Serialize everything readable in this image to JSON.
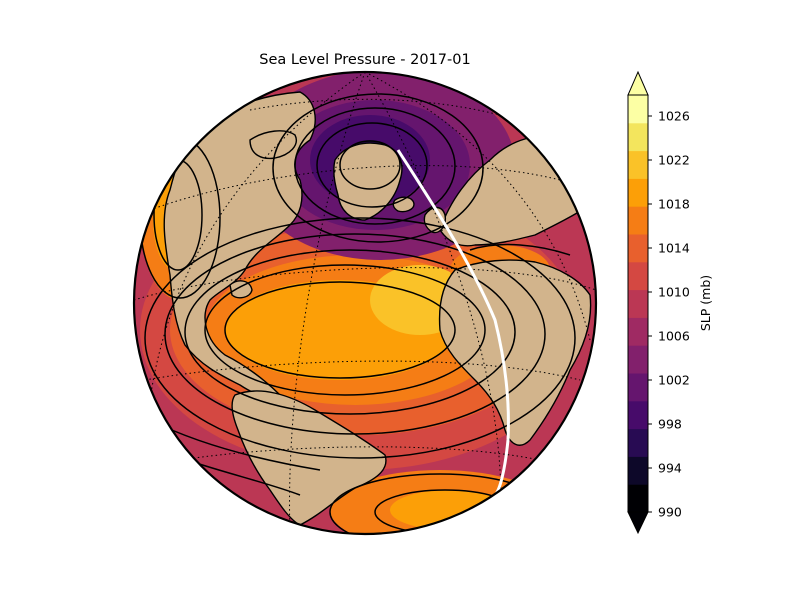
{
  "title": "Sea Level Pressure - 2017-01",
  "colorbar": {
    "label": "SLP (mb)",
    "ticks": [
      "1026",
      "1022",
      "1018",
      "1014",
      "1010",
      "1006",
      "1002",
      "998",
      "994",
      "990"
    ],
    "colors": [
      "#000004",
      "#0d0829",
      "#280b53",
      "#470b6a",
      "#65156e",
      "#82206c",
      "#9f2a63",
      "#bb3754",
      "#d44842",
      "#e8602d",
      "#f57d15",
      "#fc9f07",
      "#fac228",
      "#f3e55d",
      "#fcffa4"
    ],
    "extend": "both"
  },
  "map": {
    "projection": "orthographic",
    "center": "North Atlantic",
    "colormap": "inferno",
    "land_color": "#d2b48c",
    "contours": true,
    "graticule": "dotted"
  }
}
